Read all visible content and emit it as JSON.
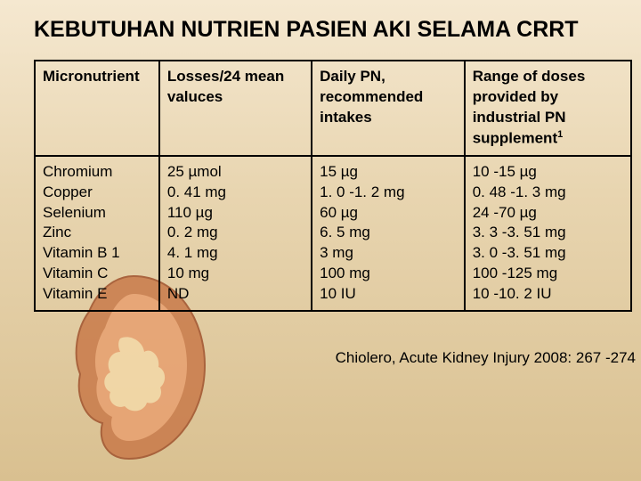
{
  "title": "KEBUTUHAN NUTRIEN PASIEN AKI SELAMA CRRT",
  "headers": {
    "c0": "Micronutrient",
    "c1": "Losses/24 mean valuces",
    "c2": "Daily PN, recommended intakes",
    "c3_a": "Range of doses provided by industrial PN supplement",
    "c3_sup": "1"
  },
  "col0": [
    "Chromium",
    "Copper",
    "Selenium",
    "Zinc",
    "Vitamin B 1",
    "Vitamin C",
    "Vitamin E"
  ],
  "col1": [
    "25 µmol",
    "0. 41 mg",
    "110 µg",
    "0. 2 mg",
    "4. 1 mg",
    "10 mg",
    "ND"
  ],
  "col2": [
    "15 µg",
    "1. 0 -1. 2 mg",
    "60 µg",
    "6. 5 mg",
    "3 mg",
    "100 mg",
    "10 IU"
  ],
  "col3": [
    "10 -15 µg",
    "0. 48 -1. 3 mg",
    "24 -70 µg",
    "3. 3 -3. 51 mg",
    "3. 0 -3. 51 mg",
    "100 -125 mg",
    "10 -10. 2 IU"
  ],
  "citation": "Chiolero, Acute Kidney Injury 2008: 267 -274",
  "colors": {
    "border": "#000000",
    "text": "#000000",
    "bg_top": "#f5e8d0",
    "bg_bottom": "#d9c090",
    "kidney_outer": "#c97a4a",
    "kidney_inner": "#e8a070"
  }
}
